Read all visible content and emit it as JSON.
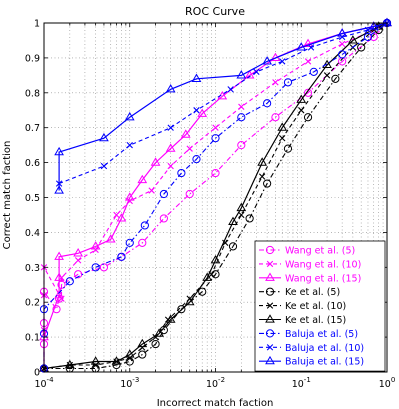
{
  "chart_data": {
    "type": "line",
    "title": "ROC Curve",
    "xlabel": "Incorrect match faction",
    "ylabel": "Correct match faction",
    "xscale": "log",
    "xlim": [
      0.0001,
      1
    ],
    "ylim": [
      0,
      1
    ],
    "grid": true,
    "legend_position": "bottom-right",
    "x_ticks": [
      {
        "value": 0.0001,
        "base": "10",
        "exp": "-4"
      },
      {
        "value": 0.001,
        "base": "10",
        "exp": "-3"
      },
      {
        "value": 0.01,
        "base": "10",
        "exp": "-2"
      },
      {
        "value": 0.1,
        "base": "10",
        "exp": "-1"
      },
      {
        "value": 1,
        "base": "10",
        "exp": "0"
      }
    ],
    "y_ticks": [
      {
        "value": 0,
        "label": "0"
      },
      {
        "value": 0.1,
        "label": "0.1"
      },
      {
        "value": 0.2,
        "label": "0.2"
      },
      {
        "value": 0.3,
        "label": "0.3"
      },
      {
        "value": 0.4,
        "label": "0.4"
      },
      {
        "value": 0.5,
        "label": "0.5"
      },
      {
        "value": 0.6,
        "label": "0.6"
      },
      {
        "value": 0.7,
        "label": "0.7"
      },
      {
        "value": 0.8,
        "label": "0.8"
      },
      {
        "value": 0.9,
        "label": "0.9"
      },
      {
        "value": 1,
        "label": "1"
      }
    ],
    "series": [
      {
        "name": "Wang et al. (5)",
        "color": "#ff00ff",
        "marker": "circle",
        "dash": "dashdot",
        "points": [
          [
            0.0001,
            0.01
          ],
          [
            0.0001,
            0.08
          ],
          [
            0.0001,
            0.14
          ],
          [
            0.0001,
            0.23
          ],
          [
            0.00014,
            0.18
          ],
          [
            0.00015,
            0.21
          ],
          [
            0.00016,
            0.25
          ],
          [
            0.00025,
            0.28
          ],
          [
            0.0005,
            0.3
          ],
          [
            0.0008,
            0.33
          ],
          [
            0.0014,
            0.37
          ],
          [
            0.0025,
            0.44
          ],
          [
            0.005,
            0.51
          ],
          [
            0.01,
            0.57
          ],
          [
            0.02,
            0.65
          ],
          [
            0.05,
            0.73
          ],
          [
            0.12,
            0.8
          ],
          [
            0.3,
            0.89
          ],
          [
            0.7,
            0.96
          ],
          [
            1,
            1.0
          ]
        ]
      },
      {
        "name": "Wang et al. (10)",
        "color": "#ff00ff",
        "marker": "x",
        "dash": "dash",
        "points": [
          [
            0.0001,
            0.01
          ],
          [
            0.0001,
            0.12
          ],
          [
            0.0001,
            0.22
          ],
          [
            0.0001,
            0.3
          ],
          [
            0.00016,
            0.21
          ],
          [
            0.00016,
            0.27
          ],
          [
            0.00025,
            0.32
          ],
          [
            0.0004,
            0.35
          ],
          [
            0.0007,
            0.45
          ],
          [
            0.001,
            0.49
          ],
          [
            0.0018,
            0.52
          ],
          [
            0.003,
            0.59
          ],
          [
            0.005,
            0.64
          ],
          [
            0.01,
            0.7
          ],
          [
            0.02,
            0.76
          ],
          [
            0.05,
            0.83
          ],
          [
            0.12,
            0.89
          ],
          [
            0.3,
            0.94
          ],
          [
            0.7,
            0.98
          ],
          [
            1,
            1.0
          ]
        ]
      },
      {
        "name": "Wang et al. (15)",
        "color": "#ff00ff",
        "marker": "triangle",
        "dash": "solid",
        "points": [
          [
            0.0001,
            0.01
          ],
          [
            0.0001,
            0.1
          ],
          [
            0.00015,
            0.22
          ],
          [
            0.00015,
            0.27
          ],
          [
            0.00015,
            0.33
          ],
          [
            0.00025,
            0.34
          ],
          [
            0.0004,
            0.36
          ],
          [
            0.0006,
            0.38
          ],
          [
            0.0008,
            0.44
          ],
          [
            0.001,
            0.5
          ],
          [
            0.0014,
            0.55
          ],
          [
            0.002,
            0.6
          ],
          [
            0.003,
            0.64
          ],
          [
            0.0045,
            0.68
          ],
          [
            0.007,
            0.74
          ],
          [
            0.012,
            0.79
          ],
          [
            0.025,
            0.85
          ],
          [
            0.05,
            0.9
          ],
          [
            0.12,
            0.94
          ],
          [
            0.3,
            0.97
          ],
          [
            0.7,
            0.99
          ],
          [
            1,
            1.0
          ]
        ]
      },
      {
        "name": "Ke et al. (5)",
        "color": "#000000",
        "marker": "circle",
        "dash": "dashdot",
        "points": [
          [
            0.0001,
            0.01
          ],
          [
            0.0002,
            0.01
          ],
          [
            0.0004,
            0.01
          ],
          [
            0.0007,
            0.02
          ],
          [
            0.001,
            0.03
          ],
          [
            0.0014,
            0.05
          ],
          [
            0.002,
            0.08
          ],
          [
            0.0025,
            0.12
          ],
          [
            0.004,
            0.18
          ],
          [
            0.007,
            0.23
          ],
          [
            0.01,
            0.28
          ],
          [
            0.016,
            0.36
          ],
          [
            0.025,
            0.44
          ],
          [
            0.04,
            0.54
          ],
          [
            0.07,
            0.64
          ],
          [
            0.12,
            0.73
          ],
          [
            0.25,
            0.84
          ],
          [
            0.5,
            0.93
          ],
          [
            0.8,
            0.98
          ],
          [
            1,
            1.0
          ]
        ]
      },
      {
        "name": "Ke et al. (10)",
        "color": "#000000",
        "marker": "x",
        "dash": "dash",
        "points": [
          [
            0.0001,
            0.01
          ],
          [
            0.0002,
            0.02
          ],
          [
            0.0004,
            0.02
          ],
          [
            0.0007,
            0.03
          ],
          [
            0.001,
            0.04
          ],
          [
            0.0014,
            0.07
          ],
          [
            0.002,
            0.1
          ],
          [
            0.0028,
            0.15
          ],
          [
            0.005,
            0.21
          ],
          [
            0.009,
            0.28
          ],
          [
            0.013,
            0.37
          ],
          [
            0.02,
            0.45
          ],
          [
            0.035,
            0.56
          ],
          [
            0.06,
            0.67
          ],
          [
            0.1,
            0.75
          ],
          [
            0.2,
            0.85
          ],
          [
            0.4,
            0.93
          ],
          [
            0.8,
            0.99
          ],
          [
            1,
            1.0
          ]
        ]
      },
      {
        "name": "Ke et al. (15)",
        "color": "#000000",
        "marker": "triangle",
        "dash": "solid",
        "points": [
          [
            0.0001,
            0.01
          ],
          [
            0.0002,
            0.02
          ],
          [
            0.0004,
            0.03
          ],
          [
            0.0007,
            0.03
          ],
          [
            0.001,
            0.05
          ],
          [
            0.0014,
            0.08
          ],
          [
            0.0022,
            0.11
          ],
          [
            0.003,
            0.15
          ],
          [
            0.005,
            0.2
          ],
          [
            0.008,
            0.27
          ],
          [
            0.01,
            0.32
          ],
          [
            0.016,
            0.43
          ],
          [
            0.02,
            0.47
          ],
          [
            0.035,
            0.6
          ],
          [
            0.06,
            0.7
          ],
          [
            0.1,
            0.78
          ],
          [
            0.2,
            0.88
          ],
          [
            0.4,
            0.95
          ],
          [
            0.8,
            0.99
          ],
          [
            1,
            1.0
          ]
        ]
      },
      {
        "name": "Baluja et al. (5)",
        "color": "#0000ff",
        "marker": "circle",
        "dash": "dashdot",
        "points": [
          [
            0.0001,
            0.01
          ],
          [
            0.0001,
            0.11
          ],
          [
            0.0001,
            0.18
          ],
          [
            0.0002,
            0.26
          ],
          [
            0.0004,
            0.3
          ],
          [
            0.0008,
            0.33
          ],
          [
            0.001,
            0.37
          ],
          [
            0.0015,
            0.42
          ],
          [
            0.0025,
            0.51
          ],
          [
            0.004,
            0.57
          ],
          [
            0.006,
            0.61
          ],
          [
            0.01,
            0.67
          ],
          [
            0.02,
            0.73
          ],
          [
            0.04,
            0.77
          ],
          [
            0.07,
            0.83
          ],
          [
            0.14,
            0.86
          ],
          [
            0.3,
            0.91
          ],
          [
            0.6,
            0.96
          ],
          [
            1,
            1.0
          ]
        ]
      },
      {
        "name": "Baluja et al. (10)",
        "color": "#0000ff",
        "marker": "x",
        "dash": "dash",
        "points": [
          [
            0.00015,
            0.54
          ],
          [
            0.0005,
            0.59
          ],
          [
            0.001,
            0.65
          ],
          [
            0.003,
            0.7
          ],
          [
            0.006,
            0.75
          ],
          [
            0.015,
            0.81
          ],
          [
            0.03,
            0.86
          ],
          [
            0.06,
            0.89
          ],
          [
            0.13,
            0.93
          ],
          [
            0.3,
            0.96
          ],
          [
            0.6,
            0.98
          ],
          [
            1,
            1.0
          ]
        ]
      },
      {
        "name": "Baluja et al. (15)",
        "color": "#0000ff",
        "marker": "triangle",
        "dash": "solid",
        "points": [
          [
            0.00015,
            0.52
          ],
          [
            0.00015,
            0.63
          ],
          [
            0.0005,
            0.67
          ],
          [
            0.001,
            0.73
          ],
          [
            0.003,
            0.81
          ],
          [
            0.006,
            0.84
          ],
          [
            0.02,
            0.85
          ],
          [
            0.04,
            0.89
          ],
          [
            0.1,
            0.93
          ],
          [
            0.3,
            0.97
          ],
          [
            0.7,
            0.99
          ],
          [
            1,
            1.0
          ]
        ]
      }
    ]
  }
}
